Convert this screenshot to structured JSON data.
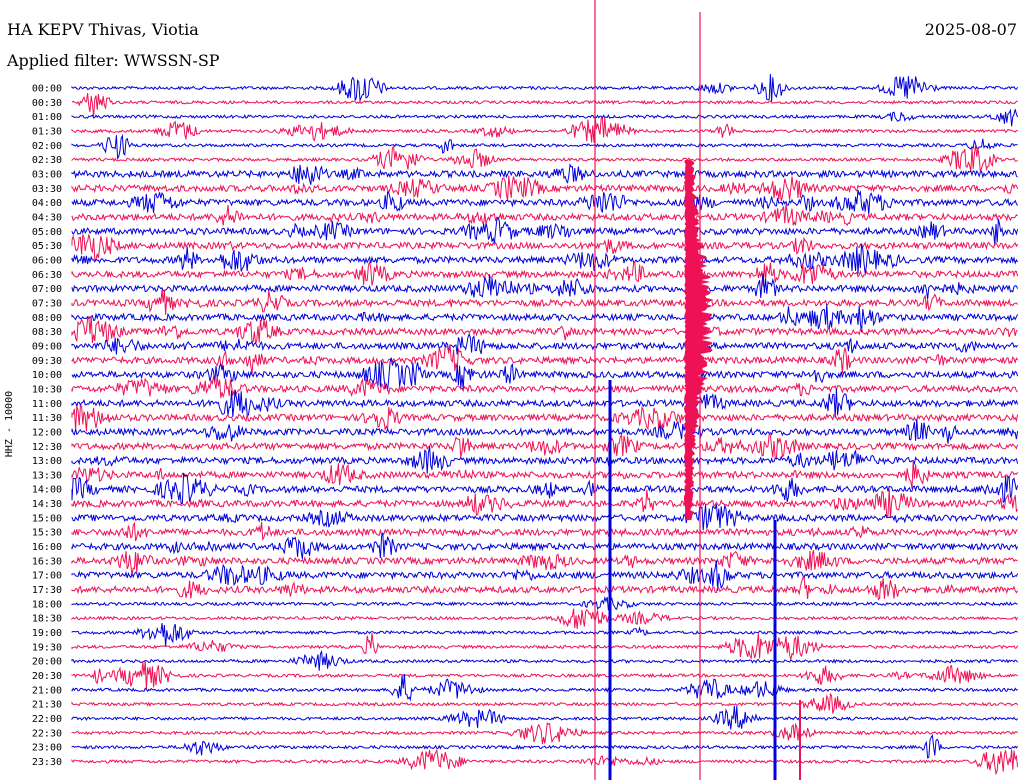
{
  "header": {
    "title": "HA KEPV Thivas, Viotia",
    "date": "2025-08-07",
    "filter": "Applied filter: WWSSN-SP",
    "channel": "HHZ - 10000"
  },
  "colors": {
    "even_row": "#0000dd",
    "odd_row": "#ee1155"
  },
  "chart_data": {
    "type": "line",
    "title": "HA KEPV Thivas, Viotia",
    "ylabel": "HHZ - 10000",
    "categories": [
      "00:00",
      "00:30",
      "01:00",
      "01:30",
      "02:00",
      "02:30",
      "03:00",
      "03:30",
      "04:00",
      "04:30",
      "05:00",
      "05:30",
      "06:00",
      "06:30",
      "07:00",
      "07:30",
      "08:00",
      "08:30",
      "09:00",
      "09:30",
      "10:00",
      "10:30",
      "11:00",
      "11:30",
      "12:00",
      "12:30",
      "13:00",
      "13:30",
      "14:00",
      "14:30",
      "15:00",
      "15:30",
      "16:00",
      "16:30",
      "17:00",
      "17:30",
      "18:00",
      "18:30",
      "19:00",
      "19:30",
      "20:00",
      "20:30",
      "21:00",
      "21:30",
      "22:00",
      "22:30",
      "23:00",
      "23:30"
    ],
    "row_colors": [
      "blue",
      "red"
    ],
    "series_note": "seismogram helicorder, 48 traces of 30 minutes each"
  }
}
